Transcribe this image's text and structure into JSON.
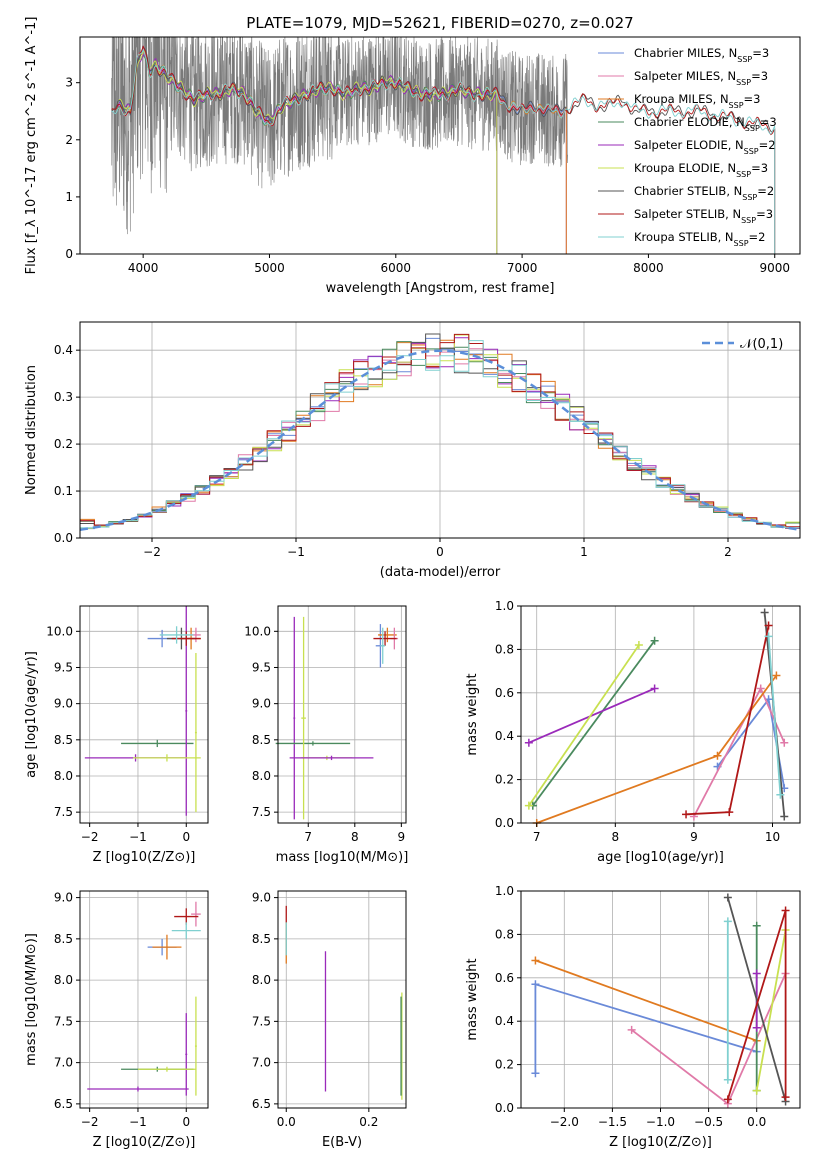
{
  "colors": [
    "#6a8ad8",
    "#e07aa8",
    "#e07a20",
    "#4a8a5e",
    "#9a2aba",
    "#c8e050",
    "#555555",
    "#b01818",
    "#80d0d0"
  ],
  "chart_data": [
    {
      "id": "spectrum",
      "type": "line",
      "title": "PLATE=1079, MJD=52621, FIBERID=0270, z=0.027",
      "xlabel": "wavelength [Angstrom, rest frame]",
      "ylabel": "Flux [f_λ 10^-17 erg cm^-2 s^-1 A^-1]",
      "xlim": [
        3500,
        9200
      ],
      "ylim": [
        0,
        3.8
      ],
      "xticks": [
        "4000",
        "5000",
        "6000",
        "7000",
        "8000",
        "9000"
      ],
      "yticks": [
        "0",
        "1",
        "2",
        "3"
      ],
      "legend_position": "top-right",
      "legend": [
        "Chabrier MILES, N_SSP=3",
        "Salpeter MILES, N_SSP=3",
        "Kroupa MILES, N_SSP=3",
        "Chabrier ELODIE, N_SSP=3",
        "Salpeter ELODIE, N_SSP=2",
        "Kroupa ELODIE, N_SSP=3",
        "Chabrier STELIB, N_SSP=2",
        "Salpeter STELIB, N_SSP=3",
        "Kroupa STELIB, N_SSP=2"
      ],
      "data_range": [
        3750,
        7360
      ],
      "model_ranges": [
        [
          3800,
          7350
        ],
        [
          3800,
          7350
        ],
        [
          3800,
          7350
        ],
        [
          3800,
          6800
        ],
        [
          3800,
          6800
        ],
        [
          3800,
          6800
        ],
        [
          3750,
          9000
        ],
        [
          3750,
          9000
        ],
        [
          3750,
          9000
        ]
      ],
      "continuum": {
        "x": [
          3750,
          3800,
          3900,
          3950,
          4000,
          4050,
          4100,
          4200,
          4300,
          4400,
          4500,
          4600,
          4700,
          4800,
          4900,
          5000,
          5100,
          5200,
          5300,
          5400,
          5500,
          5600,
          5700,
          5800,
          5900,
          6000,
          6100,
          6200,
          6300,
          6400,
          6500,
          6600,
          6700,
          6800,
          6900,
          7000,
          7100,
          7200,
          7300,
          7400,
          7500,
          7600,
          7700,
          7800,
          7900,
          8000,
          8200,
          8400,
          8600,
          8800,
          9000
        ],
        "y": [
          2.4,
          2.6,
          2.5,
          3.3,
          3.6,
          3.2,
          3.3,
          3.1,
          2.9,
          2.7,
          2.8,
          2.8,
          2.9,
          2.8,
          2.5,
          2.3,
          2.6,
          2.7,
          2.8,
          2.9,
          2.9,
          2.8,
          2.9,
          2.9,
          3.0,
          3.0,
          2.9,
          2.8,
          2.8,
          2.8,
          2.9,
          2.8,
          2.8,
          2.8,
          2.6,
          2.5,
          2.6,
          2.5,
          2.5,
          2.6,
          2.7,
          2.6,
          2.6,
          2.7,
          2.5,
          2.5,
          2.5,
          2.5,
          2.4,
          2.3,
          2.2
        ]
      }
    },
    {
      "id": "residuals",
      "type": "line",
      "xlabel": "(data-model)/error",
      "ylabel": "Normed distribution",
      "xlim": [
        -2.5,
        2.5
      ],
      "ylim": [
        0,
        0.46
      ],
      "xticks": [
        "−2",
        "−1",
        "0",
        "1",
        "2"
      ],
      "yticks": [
        "0.0",
        "0.1",
        "0.2",
        "0.3",
        "0.4"
      ],
      "legend_position": "top-right",
      "legend": [
        "𝒩(0,1)"
      ],
      "reference": "N(0,1)"
    },
    {
      "id": "age-vs-Z",
      "type": "scatter",
      "xlabel": "Z [log10(Z/Z⊙)]",
      "ylabel": "age  [log10(age/yr)]",
      "xlim": [
        -2.2,
        0.45
      ],
      "ylim": [
        7.35,
        10.35
      ],
      "xticks": [
        "−2",
        "−1",
        "0"
      ],
      "yticks": [
        "7.5",
        "8.0",
        "8.5",
        "9.0",
        "9.5",
        "10.0"
      ],
      "points": [
        {
          "c": 0,
          "x": -0.5,
          "xe": 0.3,
          "y": 9.9,
          "ye": 0.12
        },
        {
          "c": 1,
          "x": 0.2,
          "xe": 0.1,
          "y": 9.95,
          "ye": 0.1
        },
        {
          "c": 2,
          "x": 0.1,
          "xe": 0.2,
          "y": 9.9,
          "ye": 0.15
        },
        {
          "c": 3,
          "x": -0.6,
          "xe": 0.75,
          "y": 8.45,
          "ye": 0.05
        },
        {
          "c": 4,
          "x": -1.05,
          "xe": 1.05,
          "y": 8.25,
          "ye": 0.05
        },
        {
          "c": 4,
          "x": 0.0,
          "xe": 0.02,
          "y": 8.9,
          "ye": 1.45
        },
        {
          "c": 5,
          "x": -0.4,
          "xe": 0.7,
          "y": 8.25,
          "ye": 0.05
        },
        {
          "c": 5,
          "x": 0.2,
          "xe": 0.02,
          "y": 8.6,
          "ye": 1.1
        },
        {
          "c": 6,
          "x": -0.1,
          "xe": 0.3,
          "y": 9.9,
          "ye": 0.15
        },
        {
          "c": 7,
          "x": 0.0,
          "xe": 0.3,
          "y": 9.9,
          "ye": 0.1
        },
        {
          "c": 8,
          "x": -0.2,
          "xe": 0.35,
          "y": 9.95,
          "ye": 0.12
        }
      ]
    },
    {
      "id": "age-vs-mass",
      "type": "scatter",
      "xlabel": "mass [log10(M/M⊙)]",
      "xlim": [
        6.35,
        9.1
      ],
      "ylim": [
        7.35,
        10.35
      ],
      "xticks": [
        "7",
        "8",
        "9"
      ],
      "yticks": [
        "7.5",
        "8.0",
        "8.5",
        "9.0",
        "9.5",
        "10.0"
      ],
      "points": [
        {
          "c": 4,
          "x": 6.7,
          "xe": 0.02,
          "y": 8.8,
          "ye": 1.4
        },
        {
          "c": 3,
          "x": 7.1,
          "xe": 0.8,
          "y": 8.45,
          "ye": 0.03
        },
        {
          "c": 5,
          "x": 6.9,
          "xe": 0.05,
          "y": 8.8,
          "ye": 1.4
        },
        {
          "c": 5,
          "x": 7.4,
          "xe": 0.55,
          "y": 8.25,
          "ye": 0.03
        },
        {
          "c": 4,
          "x": 7.5,
          "xe": 0.9,
          "y": 8.25,
          "ye": 0.03
        },
        {
          "c": 0,
          "x": 8.55,
          "xe": 0.1,
          "y": 9.8,
          "ye": 0.3
        },
        {
          "c": 2,
          "x": 8.7,
          "xe": 0.2,
          "y": 9.95,
          "ye": 0.1
        },
        {
          "c": 1,
          "x": 8.85,
          "xe": 0.08,
          "y": 9.9,
          "ye": 0.15
        },
        {
          "c": 7,
          "x": 8.65,
          "xe": 0.25,
          "y": 9.9,
          "ye": 0.1
        },
        {
          "c": 8,
          "x": 8.6,
          "xe": 0.05,
          "y": 9.8,
          "ye": 0.25
        }
      ]
    },
    {
      "id": "mass-weight-vs-age",
      "type": "line",
      "xlabel": "age  [log10(age/yr)]",
      "ylabel": "mass weight",
      "xlim": [
        6.8,
        10.35
      ],
      "ylim": [
        0,
        1.0
      ],
      "xticks": [
        "7",
        "8",
        "9",
        "10"
      ],
      "yticks": [
        "0.0",
        "0.2",
        "0.4",
        "0.6",
        "0.8",
        "1.0"
      ],
      "series": [
        {
          "c": 0,
          "x": [
            9.3,
            9.95,
            10.15
          ],
          "y": [
            0.26,
            0.57,
            0.16
          ]
        },
        {
          "c": 1,
          "x": [
            9.0,
            9.85,
            10.15
          ],
          "y": [
            0.03,
            0.62,
            0.37
          ]
        },
        {
          "c": 2,
          "x": [
            7.0,
            9.3,
            10.05
          ],
          "y": [
            0.0,
            0.31,
            0.68
          ]
        },
        {
          "c": 3,
          "x": [
            6.95,
            6.95,
            8.5
          ],
          "y": [
            0.08,
            0.08,
            0.84
          ]
        },
        {
          "c": 4,
          "x": [
            6.9,
            8.5
          ],
          "y": [
            0.37,
            0.62
          ]
        },
        {
          "c": 5,
          "x": [
            6.9,
            8.3
          ],
          "y": [
            0.08,
            0.82
          ]
        },
        {
          "c": 6,
          "x": [
            9.9,
            10.15
          ],
          "y": [
            0.97,
            0.03
          ]
        },
        {
          "c": 7,
          "x": [
            8.9,
            9.45,
            9.95
          ],
          "y": [
            0.04,
            0.05,
            0.91
          ]
        },
        {
          "c": 8,
          "x": [
            9.95,
            10.1
          ],
          "y": [
            0.86,
            0.13
          ]
        }
      ]
    },
    {
      "id": "mass-vs-Z",
      "type": "scatter",
      "xlabel": "Z [log10(Z/Z⊙)]",
      "ylabel": "mass [log10(M/M⊙)]",
      "xlim": [
        -2.2,
        0.45
      ],
      "ylim": [
        6.45,
        9.08
      ],
      "xticks": [
        "−2",
        "−1",
        "0"
      ],
      "yticks": [
        "6.5",
        "7.0",
        "7.5",
        "8.0",
        "8.5",
        "9.0"
      ],
      "points": [
        {
          "c": 0,
          "x": -0.5,
          "xe": 0.3,
          "y": 8.4,
          "ye": 0.1
        },
        {
          "c": 2,
          "x": -0.4,
          "xe": 0.3,
          "y": 8.4,
          "ye": 0.15
        },
        {
          "c": 1,
          "x": 0.2,
          "xe": 0.1,
          "y": 8.8,
          "ye": 0.15
        },
        {
          "c": 7,
          "x": 0.0,
          "xe": 0.25,
          "y": 8.77,
          "ye": 0.1
        },
        {
          "c": 8,
          "x": 0.0,
          "xe": 0.3,
          "y": 8.6,
          "ye": 0.1
        },
        {
          "c": 3,
          "x": -0.6,
          "xe": 0.75,
          "y": 6.92,
          "ye": 0.03
        },
        {
          "c": 4,
          "x": -1.0,
          "xe": 1.05,
          "y": 6.68,
          "ye": 0.03
        },
        {
          "c": 4,
          "x": 0.0,
          "xe": 0.02,
          "y": 7.1,
          "ye": 0.5
        },
        {
          "c": 5,
          "x": -0.4,
          "xe": 0.6,
          "y": 6.92,
          "ye": 0.03
        },
        {
          "c": 5,
          "x": 0.2,
          "xe": 0.02,
          "y": 7.2,
          "ye": 0.6
        }
      ]
    },
    {
      "id": "mass-vs-EBV",
      "type": "scatter",
      "xlabel": "E(B-V)",
      "xlim": [
        -0.02,
        0.29
      ],
      "ylim": [
        6.45,
        9.08
      ],
      "xticks": [
        "0.0",
        "0.2"
      ],
      "yticks": [
        "6.5",
        "7.0",
        "7.5",
        "8.0",
        "8.5",
        "9.0"
      ],
      "points": [
        {
          "c": 7,
          "x": 0.0,
          "xe": 0.0,
          "y": 8.6,
          "ye": 0.3
        },
        {
          "c": 2,
          "x": 0.0,
          "xe": 0.0,
          "y": 8.45,
          "ye": 0.25
        },
        {
          "c": 8,
          "x": 0.0,
          "xe": 0.0,
          "y": 8.5,
          "ye": 0.2
        },
        {
          "c": 4,
          "x": 0.095,
          "xe": 0.0,
          "y": 7.5,
          "ye": 0.85
        },
        {
          "c": 5,
          "x": 0.28,
          "xe": 0.0,
          "y": 7.2,
          "ye": 0.65
        },
        {
          "c": 3,
          "x": 0.278,
          "xe": 0.0,
          "y": 7.2,
          "ye": 0.6
        }
      ]
    },
    {
      "id": "mass-weight-vs-Z",
      "type": "line",
      "xlabel": "Z [log10(Z/Z⊙)]",
      "ylabel": "mass weight",
      "xlim": [
        -2.45,
        0.45
      ],
      "ylim": [
        0,
        1.0
      ],
      "xticks": [
        "−2.0",
        "−1.5",
        "−1.0",
        "−0.5",
        "0.0"
      ],
      "yticks": [
        "0.0",
        "0.2",
        "0.4",
        "0.6",
        "0.8",
        "1.0"
      ],
      "series": [
        {
          "c": 0,
          "x": [
            -2.3,
            -2.3,
            0.0
          ],
          "y": [
            0.16,
            0.57,
            0.26
          ]
        },
        {
          "c": 1,
          "x": [
            -1.3,
            -0.3,
            0.3
          ],
          "y": [
            0.36,
            0.02,
            0.62
          ]
        },
        {
          "c": 2,
          "x": [
            -2.3,
            0.0
          ],
          "y": [
            0.68,
            0.31
          ]
        },
        {
          "c": 3,
          "x": [
            0.0,
            0.0
          ],
          "y": [
            0.08,
            0.84
          ]
        },
        {
          "c": 4,
          "x": [
            0.0,
            0.0
          ],
          "y": [
            0.37,
            0.62
          ]
        },
        {
          "c": 5,
          "x": [
            0.0,
            0.3
          ],
          "y": [
            0.08,
            0.82
          ]
        },
        {
          "c": 6,
          "x": [
            -0.3,
            0.3
          ],
          "y": [
            0.97,
            0.03
          ]
        },
        {
          "c": 7,
          "x": [
            -0.3,
            0.3,
            0.3
          ],
          "y": [
            0.04,
            0.91,
            0.05
          ]
        },
        {
          "c": 8,
          "x": [
            -0.3,
            -0.3
          ],
          "y": [
            0.86,
            0.13
          ]
        }
      ]
    }
  ]
}
